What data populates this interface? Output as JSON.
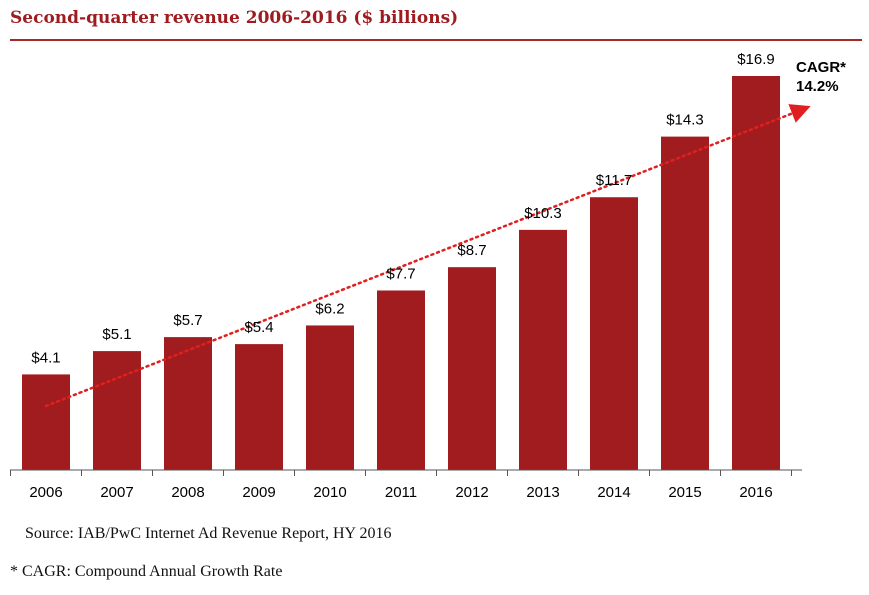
{
  "title": "Second-quarter revenue 2006-2016 ($ billions)",
  "source": "Source: IAB/PwC Internet Ad Revenue Report, HY 2016",
  "footnote": "* CAGR: Compound Annual Growth Rate",
  "cagr": {
    "label": "CAGR*",
    "value": "14.2%"
  },
  "colors": {
    "bar": "#a11c1f",
    "title": "#9e1c20",
    "trend": "#e02020"
  },
  "chart_data": {
    "type": "bar",
    "title": "Second-quarter revenue 2006-2016 ($ billions)",
    "categories": [
      "2006",
      "2007",
      "2008",
      "2009",
      "2010",
      "2011",
      "2012",
      "2013",
      "2014",
      "2015",
      "2016"
    ],
    "values": [
      4.1,
      5.1,
      5.7,
      5.4,
      6.2,
      7.7,
      8.7,
      10.3,
      11.7,
      14.3,
      16.9
    ],
    "data_labels": [
      "$4.1",
      "$5.1",
      "$5.7",
      "$5.4",
      "$6.2",
      "$7.7",
      "$8.7",
      "$10.3",
      "$11.7",
      "$14.3",
      "$16.9"
    ],
    "xlabel": "",
    "ylabel": "",
    "ylim": [
      0,
      17.5
    ],
    "grid": false,
    "legend": "none",
    "trendline": {
      "style": "dotted-arrow",
      "annotation": "CAGR* 14.2%"
    }
  }
}
